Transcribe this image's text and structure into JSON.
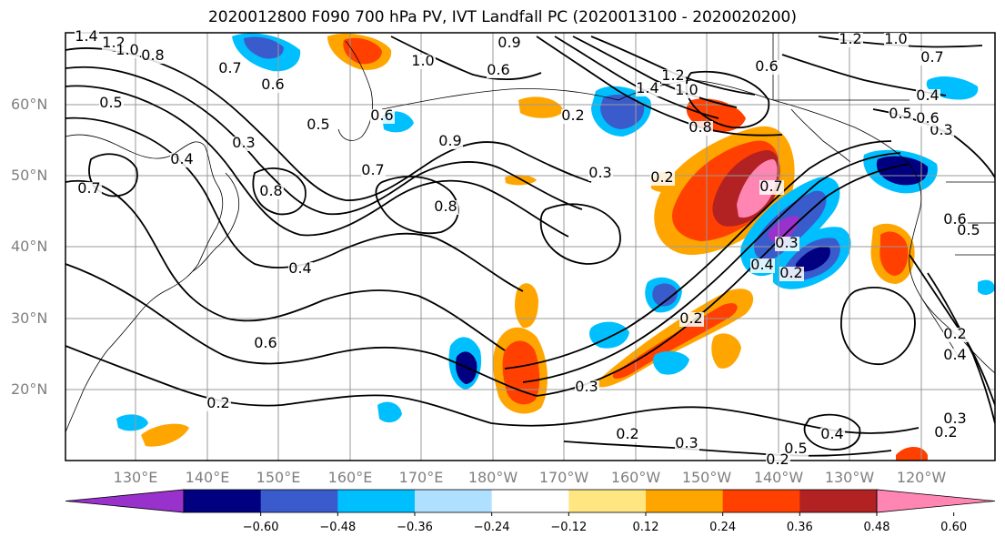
{
  "title": "2020012800 F090 700 hPa PV, IVT Landfall PC (2020013100 - 2020020200)",
  "lat_labels": [
    "60°N",
    "50°N",
    "40°N",
    "30°N",
    "20°N"
  ],
  "lon_labels": [
    "130°E",
    "140°E",
    "150°E",
    "160°E",
    "170°E",
    "180°W",
    "170°W",
    "160°W",
    "150°W",
    "140°W",
    "130°W",
    "120°W"
  ],
  "colorbar": {
    "colors": [
      "#9932cc",
      "#000080",
      "#3a5bcc",
      "#00bfff",
      "#b0e0ff",
      "#ffffff",
      "#ffe680",
      "#ffa500",
      "#ff4000",
      "#b22222",
      "#ff85b3"
    ],
    "tick_labels": [
      "−0.60",
      "−0.48",
      "−0.36",
      "−0.24",
      "−0.12",
      "0.12",
      "0.24",
      "0.36",
      "0.48",
      "0.60"
    ]
  },
  "contour_labels": [
    "1.4",
    "1.2",
    "1.0",
    "0.8",
    "0.7",
    "0.5",
    "0.6",
    "0.3",
    "0.4",
    "0.7",
    "1.0",
    "0.6",
    "0.5",
    "0.6",
    "0.8",
    "0.9",
    "0.7",
    "0.8",
    "1.0",
    "1.4",
    "1.2",
    "0.2",
    "0.3",
    "0.9",
    "0.8",
    "0.7",
    "0.2",
    "1.2",
    "1.0",
    "0.7",
    "0.6",
    "0.4",
    "0.3",
    "0.5",
    "0.6",
    "0.4",
    "0.2",
    "0.6",
    "0.4",
    "0.3",
    "0.2",
    "0.2",
    "0.3",
    "0.2",
    "0.4",
    "0.5",
    "0.2",
    "0.3",
    "0.2",
    "0.4",
    "0.3",
    "0.2",
    "0.6",
    "0.5"
  ],
  "contour_label_placement": [
    [
      95,
      45
    ],
    [
      125,
      52
    ],
    [
      140,
      60
    ],
    [
      168,
      66
    ],
    [
      253,
      80
    ],
    [
      122,
      118
    ],
    [
      300,
      98
    ],
    [
      268,
      162
    ],
    [
      200,
      180
    ],
    [
      98,
      212
    ],
    [
      465,
      72
    ],
    [
      548,
      82
    ],
    [
      350,
      142
    ],
    [
      420,
      132
    ],
    [
      298,
      215
    ],
    [
      560,
      52
    ],
    [
      410,
      192
    ],
    [
      490,
      232
    ],
    [
      755,
      104
    ],
    [
      712,
      102
    ],
    [
      740,
      88
    ],
    [
      630,
      132
    ],
    [
      660,
      195
    ],
    [
      495,
      160
    ],
    [
      770,
      145
    ],
    [
      848,
      210
    ],
    [
      728,
      200
    ],
    [
      935,
      48
    ],
    [
      985,
      48
    ],
    [
      1025,
      68
    ],
    [
      843,
      78
    ],
    [
      1020,
      110
    ],
    [
      1035,
      148
    ],
    [
      990,
      130
    ],
    [
      1050,
      246
    ],
    [
      330,
      300
    ],
    [
      240,
      448
    ],
    [
      292,
      382
    ],
    [
      838,
      296
    ],
    [
      865,
      272
    ],
    [
      870,
      305
    ],
    [
      760,
      355
    ],
    [
      645,
      430
    ],
    [
      690,
      482
    ],
    [
      915,
      482
    ],
    [
      875,
      498
    ],
    [
      855,
      510
    ],
    [
      755,
      492
    ],
    [
      1050,
      372
    ],
    [
      1050,
      395
    ],
    [
      1050,
      465
    ],
    [
      1040,
      480
    ],
    [
      1020,
      135
    ],
    [
      1065,
      258
    ]
  ]
}
